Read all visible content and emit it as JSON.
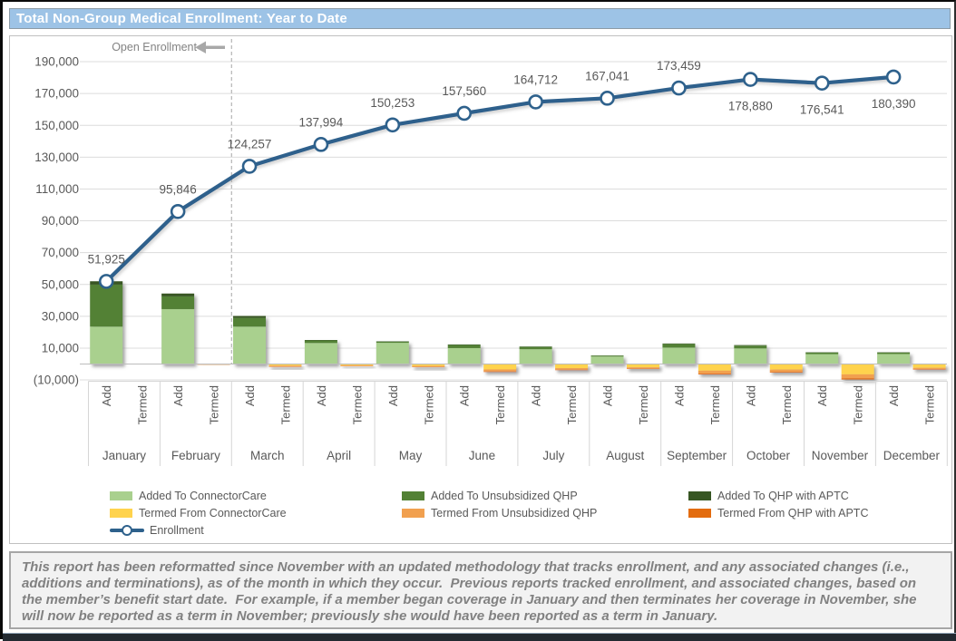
{
  "title": "Total Non-Group Medical Enrollment: Year to Date",
  "annotation": {
    "label": "Open Enrollment"
  },
  "y_axis": {
    "tick_labels": [
      "190,000",
      "170,000",
      "150,000",
      "130,000",
      "110,000",
      "90,000",
      "70,000",
      "50,000",
      "30,000",
      "10,000",
      "(10,000)"
    ],
    "max": 190000,
    "min": -10000,
    "step": 20000
  },
  "axis": {
    "col_labels": {
      "add": "Add",
      "termed": "Termed"
    }
  },
  "chart_data": {
    "type": "combo-stacked-bar-line",
    "categories": [
      "January",
      "February",
      "March",
      "April",
      "May",
      "June",
      "July",
      "August",
      "September",
      "October",
      "November",
      "December"
    ],
    "bar_slots_per_month": [
      "Add",
      "Termed"
    ],
    "ylim": [
      -10000,
      190000
    ],
    "grid": true,
    "open_enrollment_divider_after": "February",
    "legend_position": "bottom-left",
    "series": [
      {
        "name": "Added To ConnectorCare",
        "group": "Add",
        "color": "#a9d08e",
        "values": [
          23500,
          34500,
          23500,
          13200,
          13300,
          10000,
          9300,
          4700,
          10300,
          9800,
          6200,
          6300
        ]
      },
      {
        "name": "Added To Unsubsidized QHP",
        "group": "Add",
        "color": "#538135",
        "values": [
          26400,
          8000,
          5500,
          1600,
          800,
          2000,
          1500,
          600,
          2300,
          1800,
          1000,
          900
        ]
      },
      {
        "name": "Added To QHP with APTC",
        "group": "Add",
        "color": "#375623",
        "values": [
          2100,
          1800,
          1200,
          300,
          200,
          300,
          200,
          100,
          300,
          300,
          200,
          200
        ]
      },
      {
        "name": "Termed From ConnectorCare",
        "group": "Termed",
        "color": "#ffd34d",
        "values": [
          -100,
          -300,
          -1000,
          -800,
          -1200,
          -3400,
          -2600,
          -2100,
          -4200,
          -3500,
          -6500,
          -2400
        ]
      },
      {
        "name": "Termed From Unsubsidized QHP",
        "group": "Termed",
        "color": "#f1a04f",
        "values": [
          -100,
          -200,
          -700,
          -500,
          -700,
          -1300,
          -1000,
          -800,
          -1800,
          -1500,
          -2500,
          -900
        ]
      },
      {
        "name": "Termed From QHP with APTC",
        "group": "Termed",
        "color": "#e36c0f",
        "values": [
          0,
          0,
          -100,
          -100,
          -100,
          -300,
          -250,
          -200,
          -500,
          -400,
          -700,
          -250
        ]
      },
      {
        "name": "Enrollment",
        "type": "line",
        "color": "#2e618c",
        "values": [
          51925,
          95846,
          124257,
          137994,
          150253,
          157560,
          164712,
          167041,
          173459,
          178880,
          176541,
          180390
        ],
        "label_side": [
          "above",
          "above",
          "above",
          "above",
          "above",
          "above",
          "above",
          "above",
          "above",
          "below",
          "below",
          "below"
        ]
      }
    ]
  },
  "footnote": {
    "text": "This report has been reformatted since November with an updated methodology that tracks enrollment, and any associated changes (i.e., additions and terminations), as of the month in which they occur.  Previous reports tracked enrollment, and associated changes, based on the member’s benefit start date.  For example, if a member began coverage in January and then terminates her coverage in November, she will now be reported as a term in November; previously she would have been reported as a term in January."
  }
}
